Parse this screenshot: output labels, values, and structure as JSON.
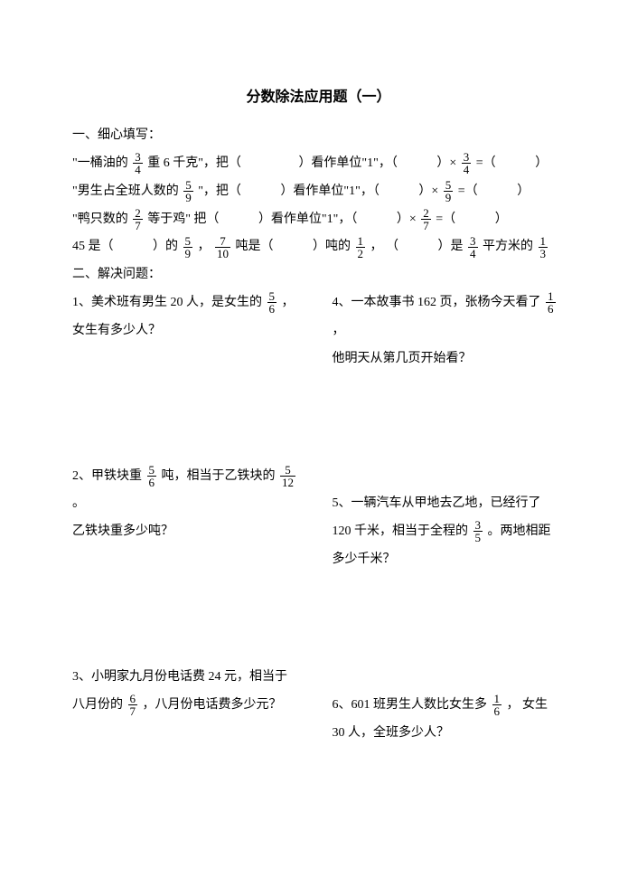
{
  "title": "分数除法应用题（一）",
  "section1": {
    "heading": "一、细心填写：",
    "line1a": "\"一桶油的",
    "f1n": "3",
    "f1d": "4",
    "line1b": "重 6 千克\"，把（",
    "line1c": "）看作单位\"1\"，（",
    "line1d": "）×",
    "line1e": " =（",
    "line1f": "）",
    "line2a": "\"男生占全班人数的",
    "f2n": "5",
    "f2d": "9",
    "line2b": "\"，把（",
    "line2c": "）看作单位\"1\"，（",
    "line2d": "）×",
    "line2e": " =（",
    "line2f": "）",
    "line3a": "\"鸭只数的",
    "f3n": "2",
    "f3d": "7",
    "line3b": "等于鸡\"  把（",
    "line3c": "）看作单位\"1\"，（",
    "line3d": "）×",
    "line3e": " =（",
    "line3f": "）",
    "line4a": "45 是（",
    "line4b": "）的",
    "f4n": "5",
    "f4d": "9",
    "line4c": "，",
    "f5n": "7",
    "f5d": "10",
    "line4d": "吨是（",
    "line4e": "）吨的",
    "f6n": "1",
    "f6d": "2",
    "line4f": "，  （",
    "line4g": "）是",
    "f7n": "3",
    "f7d": "4",
    "line4h": "平方米的",
    "f8n": "1",
    "f8d": "3"
  },
  "section2": {
    "heading": "二、解决问题：",
    "p1a": "1、美术班有男生 20 人，是女生的",
    "p1fn": "5",
    "p1fd": "6",
    "p1b": "，",
    "p1c": "女生有多少人？",
    "p2a": "2、甲铁块重",
    "p2f1n": "5",
    "p2f1d": "6",
    "p2b": "吨，相当于乙铁块的",
    "p2f2n": "5",
    "p2f2d": "12",
    "p2c": "。",
    "p2d": "乙铁块重多少吨？",
    "p3a": "3、小明家九月份电话费 24 元，相当于",
    "p3b": "八月份的",
    "p3fn": "6",
    "p3fd": "7",
    "p3c": "，八月份电话费多少元？",
    "p4a": "4、一本故事书 162 页，张杨今天看了",
    "p4fn": "1",
    "p4fd": "6",
    "p4b": "，",
    "p4c": "他明天从第几页开始看？",
    "p5a": "5、一辆汽车从甲地去乙地，已经行了",
    "p5b": "120 千米，相当于全程的",
    "p5fn": "3",
    "p5fd": "5",
    "p5c": "。两地相距",
    "p5d": "多少千米？",
    "p6a": "6、601 班男生人数比女生多",
    "p6fn": "1",
    "p6fd": "6",
    "p6b": "，  女生",
    "p6c": "30 人，全班多少人？"
  }
}
